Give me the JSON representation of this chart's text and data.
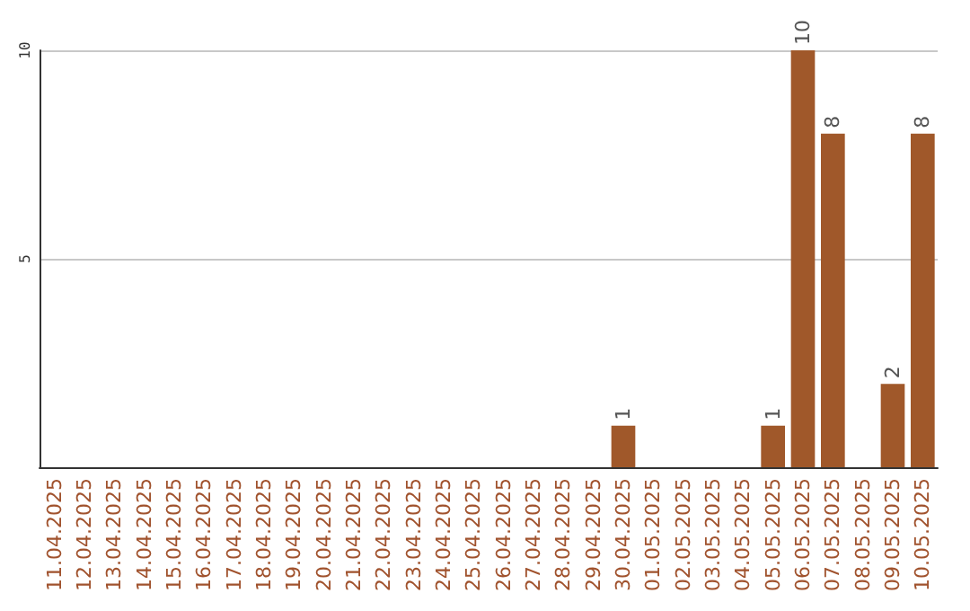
{
  "chart_data": {
    "type": "bar",
    "categories": [
      "11.04.2025",
      "12.04.2025",
      "13.04.2025",
      "14.04.2025",
      "15.04.2025",
      "16.04.2025",
      "17.04.2025",
      "18.04.2025",
      "19.04.2025",
      "20.04.2025",
      "21.04.2025",
      "22.04.2025",
      "23.04.2025",
      "24.04.2025",
      "25.04.2025",
      "26.04.2025",
      "27.04.2025",
      "28.04.2025",
      "29.04.2025",
      "30.04.2025",
      "01.05.2025",
      "02.05.2025",
      "03.05.2025",
      "04.05.2025",
      "05.05.2025",
      "06.05.2025",
      "07.05.2025",
      "08.05.2025",
      "09.05.2025",
      "10.05.2025"
    ],
    "values": [
      0,
      0,
      0,
      0,
      0,
      0,
      0,
      0,
      0,
      0,
      0,
      0,
      0,
      0,
      0,
      0,
      0,
      0,
      0,
      1,
      0,
      0,
      0,
      0,
      1,
      10,
      8,
      0,
      2,
      8
    ],
    "value_labels": [
      null,
      null,
      null,
      null,
      null,
      null,
      null,
      null,
      null,
      null,
      null,
      null,
      null,
      null,
      null,
      null,
      null,
      null,
      null,
      "1",
      null,
      null,
      null,
      null,
      "1",
      "10",
      "8",
      null,
      "2",
      "8"
    ],
    "color": "#a0582a",
    "ylim": [
      0,
      10
    ],
    "yticks": [
      {
        "value": 0,
        "label": null
      },
      5,
      10
    ],
    "grid": "y"
  }
}
